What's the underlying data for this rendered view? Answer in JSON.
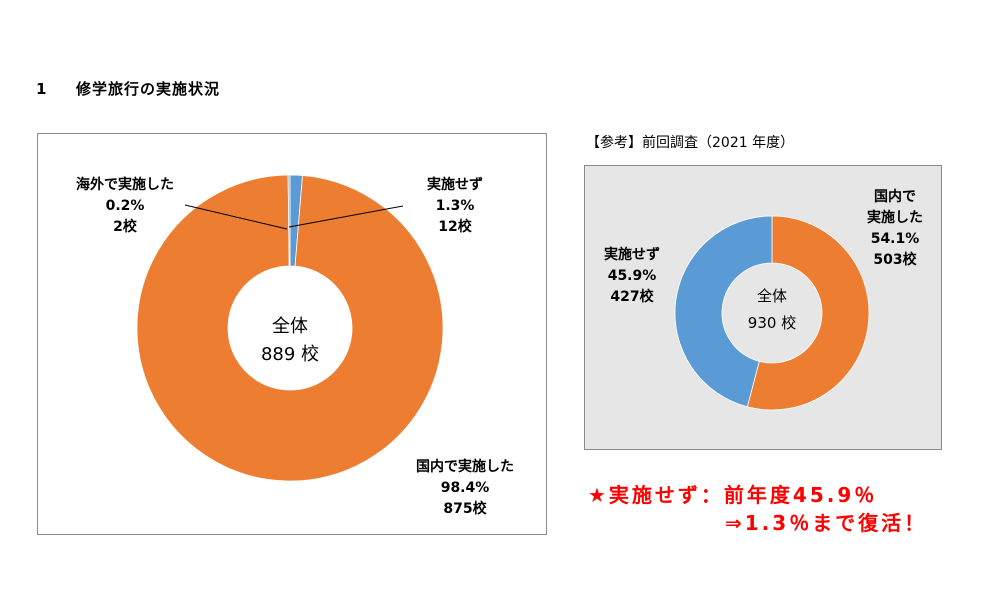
{
  "section": {
    "number": "1",
    "title": "修学旅行の実施状況"
  },
  "chart_data": [
    {
      "type": "pie",
      "donut": true,
      "center_label": {
        "line1": "全体",
        "line2": "889 校"
      },
      "slices": [
        {
          "name": "国内で実施した",
          "percent": 98.4,
          "schools": 875,
          "pct_label": "98.4%",
          "count_label": "875校",
          "color": "#ED7D31"
        },
        {
          "name": "海外で実施した",
          "percent": 0.2,
          "schools": 2,
          "pct_label": "0.2%",
          "count_label": "2校",
          "color": "#A5A5A5"
        },
        {
          "name": "実施せず",
          "percent": 1.3,
          "schools": 12,
          "pct_label": "1.3%",
          "count_label": "12校",
          "color": "#5B9BD5"
        }
      ]
    },
    {
      "type": "pie",
      "donut": true,
      "heading": "【参考】前回調査（2021 年度）",
      "center_label": {
        "line1": "全体",
        "line2": "930 校"
      },
      "slices": [
        {
          "name_line1": "国内で",
          "name_line2": "実施した",
          "percent": 54.1,
          "schools": 503,
          "pct_label": "54.1%",
          "count_label": "503校",
          "color": "#ED7D31"
        },
        {
          "name": "実施せず",
          "percent": 45.9,
          "schools": 427,
          "pct_label": "45.9%",
          "count_label": "427校",
          "color": "#5B9BD5"
        }
      ]
    }
  ],
  "note": {
    "line1": "★実施せず：前年度45.9％",
    "line2": "⇒1.3％まで復活！"
  }
}
